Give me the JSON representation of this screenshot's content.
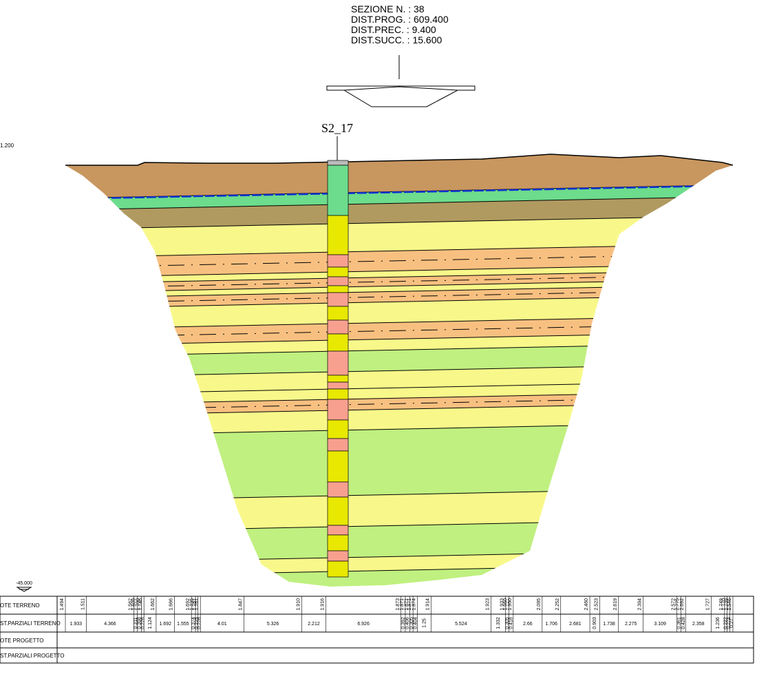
{
  "header": {
    "lines": [
      "SEZIONE N. : 38",
      "DIST.PROG. : 609.400",
      "DIST.PREC. : 9.400",
      "DIST.SUCC. : 15.600"
    ]
  },
  "borehole": "S2_17",
  "reference_level": "1.200",
  "datum": "-45.000",
  "table": {
    "row_labels": [
      "OTE TERRENO",
      "ST.PARZIALI TERRENO",
      "OTE PROGETTO",
      "ST.PARZIALI PROGETTO"
    ],
    "quote_terreno": [
      "1.494",
      "1.511",
      "1.562",
      "1.609",
      "1.700",
      "1.746",
      "1.662",
      "1.666",
      "1.692",
      "1.735",
      "1.761",
      "1.761",
      "1.847",
      "1.910",
      "1.916",
      "1.873",
      "1.871",
      "1.871",
      "1.871",
      "1.874",
      "1.914",
      "1.923",
      "1.933",
      "1.950",
      "1.950",
      "2.095",
      "2.252",
      "2.460",
      "2.523",
      "2.619",
      "2.394",
      "2.572",
      "2.775",
      "2.692",
      "1.727",
      "1.749",
      "1.770",
      "1.739",
      "1.546"
    ],
    "dist_parziali_terreno": [
      1.933,
      4.366,
      0.311,
      0.398,
      0.226,
      1.124,
      1.692,
      1.555,
      0.374,
      0.225,
      0.226,
      4.01,
      5.326,
      2.212,
      6.926,
      0.392,
      0.406,
      0.305,
      0.404,
      1.25,
      5.524,
      1.332,
      0.305,
      0.416,
      2.66,
      1.706,
      2.681,
      0.903,
      1.738,
      2.275,
      3.109,
      0.361,
      0.428,
      2.358,
      1.236,
      0.222,
      0.274,
      0.27
    ]
  }
}
